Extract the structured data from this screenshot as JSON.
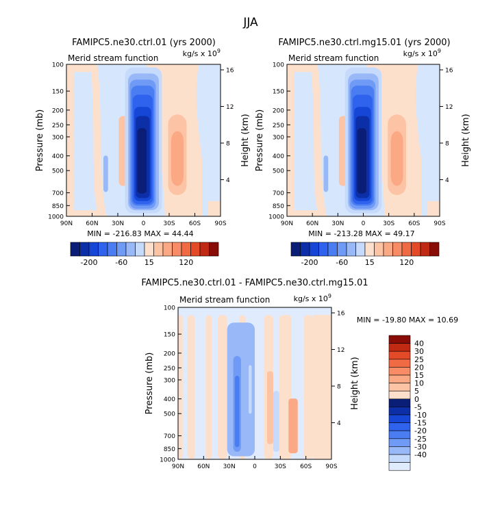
{
  "figure_title": "JJA",
  "colors": {
    "neg": [
      "#0a1e78",
      "#0c2fa8",
      "#1646d6",
      "#2f63ee",
      "#4a7cf2",
      "#6f9af5",
      "#98b8f8",
      "#c6dafc"
    ],
    "pos": [
      "#fde0cc",
      "#fdc3a5",
      "#fba884",
      "#f88c66",
      "#f06a44",
      "#e44a28",
      "#c02a12",
      "#8a0c06"
    ],
    "diff_neg": [
      "#0a1e78",
      "#0c2fa8",
      "#1646d6",
      "#2f63ee",
      "#4a7cf2",
      "#6f9af5",
      "#98b8f8",
      "#c6dafc",
      "#e0ebfd"
    ],
    "diff_pos": [
      "#fde0cc",
      "#fdc3a5",
      "#fba884",
      "#f88c66",
      "#f06a44",
      "#e44a28",
      "#c02a12",
      "#8a0c06"
    ]
  },
  "chart_data": [
    {
      "type": "heatmap",
      "title": "FAMIPC5.ne30.ctrl.01 (yrs 2000)",
      "left_string": "Merid stream function",
      "units": "kg/s x 10",
      "units_exp": "9",
      "ylabel": "Pressure (mb)",
      "ylabel_right": "Height (km)",
      "x_ticks": [
        "90N",
        "60N",
        "30N",
        "0",
        "30S",
        "60S",
        "90S"
      ],
      "y_ticks": [
        "100",
        "150",
        "200",
        "250",
        "300",
        "400",
        "500",
        "700",
        "850",
        "1000"
      ],
      "height_ticks": [
        "16",
        "12",
        "8",
        "4"
      ],
      "stats": "MIN = -216.83   MAX =  44.44",
      "min": -216.83,
      "max": 44.44,
      "colorbar_labels": [
        "-200",
        "-60",
        "15",
        "120"
      ]
    },
    {
      "type": "heatmap",
      "title": "FAMIPC5.ne30.ctrl.mg15.01 (yrs 2000)",
      "left_string": "Merid stream function",
      "units": "kg/s x 10",
      "units_exp": "9",
      "ylabel": "Pressure (mb)",
      "ylabel_right": "Height (km)",
      "x_ticks": [
        "90N",
        "60N",
        "30N",
        "0",
        "30S",
        "60S",
        "90S"
      ],
      "y_ticks": [
        "100",
        "150",
        "200",
        "250",
        "300",
        "400",
        "500",
        "700",
        "850",
        "1000"
      ],
      "height_ticks": [
        "16",
        "12",
        "8",
        "4"
      ],
      "stats": "MIN = -213.28   MAX =  49.17",
      "min": -213.28,
      "max": 49.17,
      "colorbar_labels": [
        "-200",
        "-60",
        "15",
        "120"
      ]
    },
    {
      "type": "heatmap",
      "title": "FAMIPC5.ne30.ctrl.01 - FAMIPC5.ne30.ctrl.mg15.01",
      "left_string": "Merid stream function",
      "units": "kg/s x 10",
      "units_exp": "9",
      "ylabel": "Pressure (mb)",
      "ylabel_right": "Height (km)",
      "x_ticks": [
        "90N",
        "60N",
        "30N",
        "0",
        "30S",
        "60S",
        "90S"
      ],
      "y_ticks": [
        "100",
        "150",
        "200",
        "250",
        "300",
        "400",
        "500",
        "700",
        "850",
        "1000"
      ],
      "height_ticks": [
        "16",
        "12",
        "8",
        "4"
      ],
      "stats": "MIN = -19.80   MAX =  10.69",
      "min": -19.8,
      "max": 10.69,
      "colorbar_labels": [
        "40",
        "30",
        "25",
        "20",
        "15",
        "10",
        "5",
        "0",
        "-5",
        "-10",
        "-15",
        "-20",
        "-25",
        "-30",
        "-40"
      ]
    }
  ]
}
